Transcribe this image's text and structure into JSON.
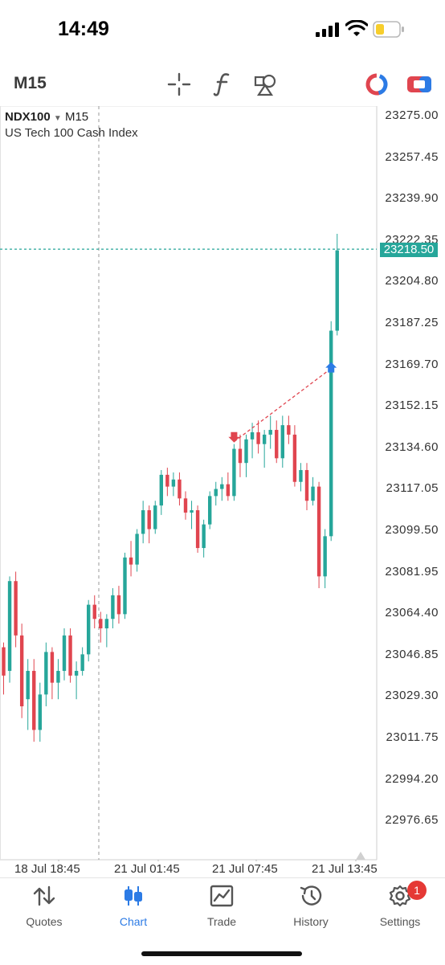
{
  "status": {
    "time": "14:49"
  },
  "toolbar": {
    "timeframe": "M15"
  },
  "chart": {
    "symbol": "NDX100",
    "timeframe": "M15",
    "description": "US Tech 100 Cash Index",
    "current_price": "23218.50",
    "price_labels": [
      "23275.00",
      "23257.45",
      "23239.90",
      "23222.35",
      "23204.80",
      "23187.25",
      "23169.70",
      "23152.15",
      "23134.60",
      "23117.05",
      "23099.50",
      "23081.95",
      "23064.40",
      "23046.85",
      "23029.30",
      "23011.75",
      "22994.20",
      "22976.65"
    ],
    "time_labels": [
      "18 Jul 18:45",
      "21 Jul 01:45",
      "21 Jul 07:45",
      "21 Jul 13:45"
    ],
    "colors": {
      "up": "#26a69a",
      "down": "#e0454f",
      "grid_line": "#26a69a"
    }
  },
  "chart_data": {
    "type": "candlestick",
    "ylim": [
      22965,
      23290
    ],
    "candles": [
      [
        23050,
        23052,
        23030,
        23038
      ],
      [
        23040,
        23080,
        23035,
        23078
      ],
      [
        23078,
        23082,
        23050,
        23055
      ],
      [
        23055,
        23060,
        23020,
        23025
      ],
      [
        23028,
        23045,
        23015,
        23040
      ],
      [
        23040,
        23045,
        23010,
        23015
      ],
      [
        23015,
        23035,
        23010,
        23030
      ],
      [
        23030,
        23052,
        23025,
        23048
      ],
      [
        23048,
        23050,
        23028,
        23035
      ],
      [
        23035,
        23045,
        23028,
        23040
      ],
      [
        23040,
        23058,
        23036,
        23055
      ],
      [
        23055,
        23058,
        23035,
        23038
      ],
      [
        23038,
        23044,
        23028,
        23040
      ],
      [
        23040,
        23050,
        23038,
        23047
      ],
      [
        23047,
        23070,
        23044,
        23068
      ],
      [
        23068,
        23072,
        23058,
        23062
      ],
      [
        23062,
        23065,
        23052,
        23058
      ],
      [
        23058,
        23064,
        23050,
        23062
      ],
      [
        23062,
        23075,
        23058,
        23072
      ],
      [
        23072,
        23076,
        23060,
        23064
      ],
      [
        23064,
        23090,
        23062,
        23088
      ],
      [
        23088,
        23095,
        23080,
        23085
      ],
      [
        23085,
        23100,
        23082,
        23098
      ],
      [
        23098,
        23112,
        23094,
        23108
      ],
      [
        23108,
        23110,
        23094,
        23100
      ],
      [
        23100,
        23112,
        23098,
        23110
      ],
      [
        23110,
        23125,
        23106,
        23123
      ],
      [
        23123,
        23126,
        23114,
        23118
      ],
      [
        23118,
        23124,
        23114,
        23121
      ],
      [
        23121,
        23124,
        23110,
        23113
      ],
      [
        23113,
        23116,
        23104,
        23107
      ],
      [
        23107,
        23112,
        23100,
        23108
      ],
      [
        23108,
        23110,
        23090,
        23092
      ],
      [
        23092,
        23104,
        23088,
        23102
      ],
      [
        23102,
        23116,
        23100,
        23114
      ],
      [
        23114,
        23120,
        23110,
        23117
      ],
      [
        23117,
        23122,
        23112,
        23119
      ],
      [
        23119,
        23124,
        23112,
        23114
      ],
      [
        23114,
        23136,
        23112,
        23134
      ],
      [
        23134,
        23140,
        23122,
        23128
      ],
      [
        23128,
        23140,
        23122,
        23138
      ],
      [
        23138,
        23145,
        23130,
        23141
      ],
      [
        23141,
        23146,
        23132,
        23136
      ],
      [
        23136,
        23142,
        23126,
        23140
      ],
      [
        23140,
        23148,
        23134,
        23142
      ],
      [
        23142,
        23146,
        23128,
        23130
      ],
      [
        23130,
        23148,
        23126,
        23144
      ],
      [
        23144,
        23148,
        23136,
        23140
      ],
      [
        23140,
        23144,
        23118,
        23120
      ],
      [
        23120,
        23128,
        23116,
        23125
      ],
      [
        23125,
        23128,
        23108,
        23112
      ],
      [
        23112,
        23122,
        23110,
        23118
      ],
      [
        23118,
        23120,
        23075,
        23080
      ],
      [
        23080,
        23100,
        23075,
        23097
      ],
      [
        23097,
        23188,
        23095,
        23184
      ],
      [
        23184,
        23225,
        23182,
        23218
      ]
    ],
    "annotations": [
      {
        "type": "sell-arrow",
        "x_index": 38,
        "price": 23137
      },
      {
        "type": "buy-arrow",
        "x_index": 54,
        "price": 23168
      },
      {
        "type": "dashed-line",
        "from": [
          38,
          23137
        ],
        "to": [
          54,
          23168
        ]
      }
    ]
  },
  "tabs": [
    {
      "label": "Quotes",
      "icon": "quotes-arrows-icon"
    },
    {
      "label": "Chart",
      "icon": "candles-icon",
      "active": true
    },
    {
      "label": "Trade",
      "icon": "trade-chart-icon"
    },
    {
      "label": "History",
      "icon": "history-clock-icon"
    },
    {
      "label": "Settings",
      "icon": "gear-icon",
      "badge": "1"
    }
  ]
}
